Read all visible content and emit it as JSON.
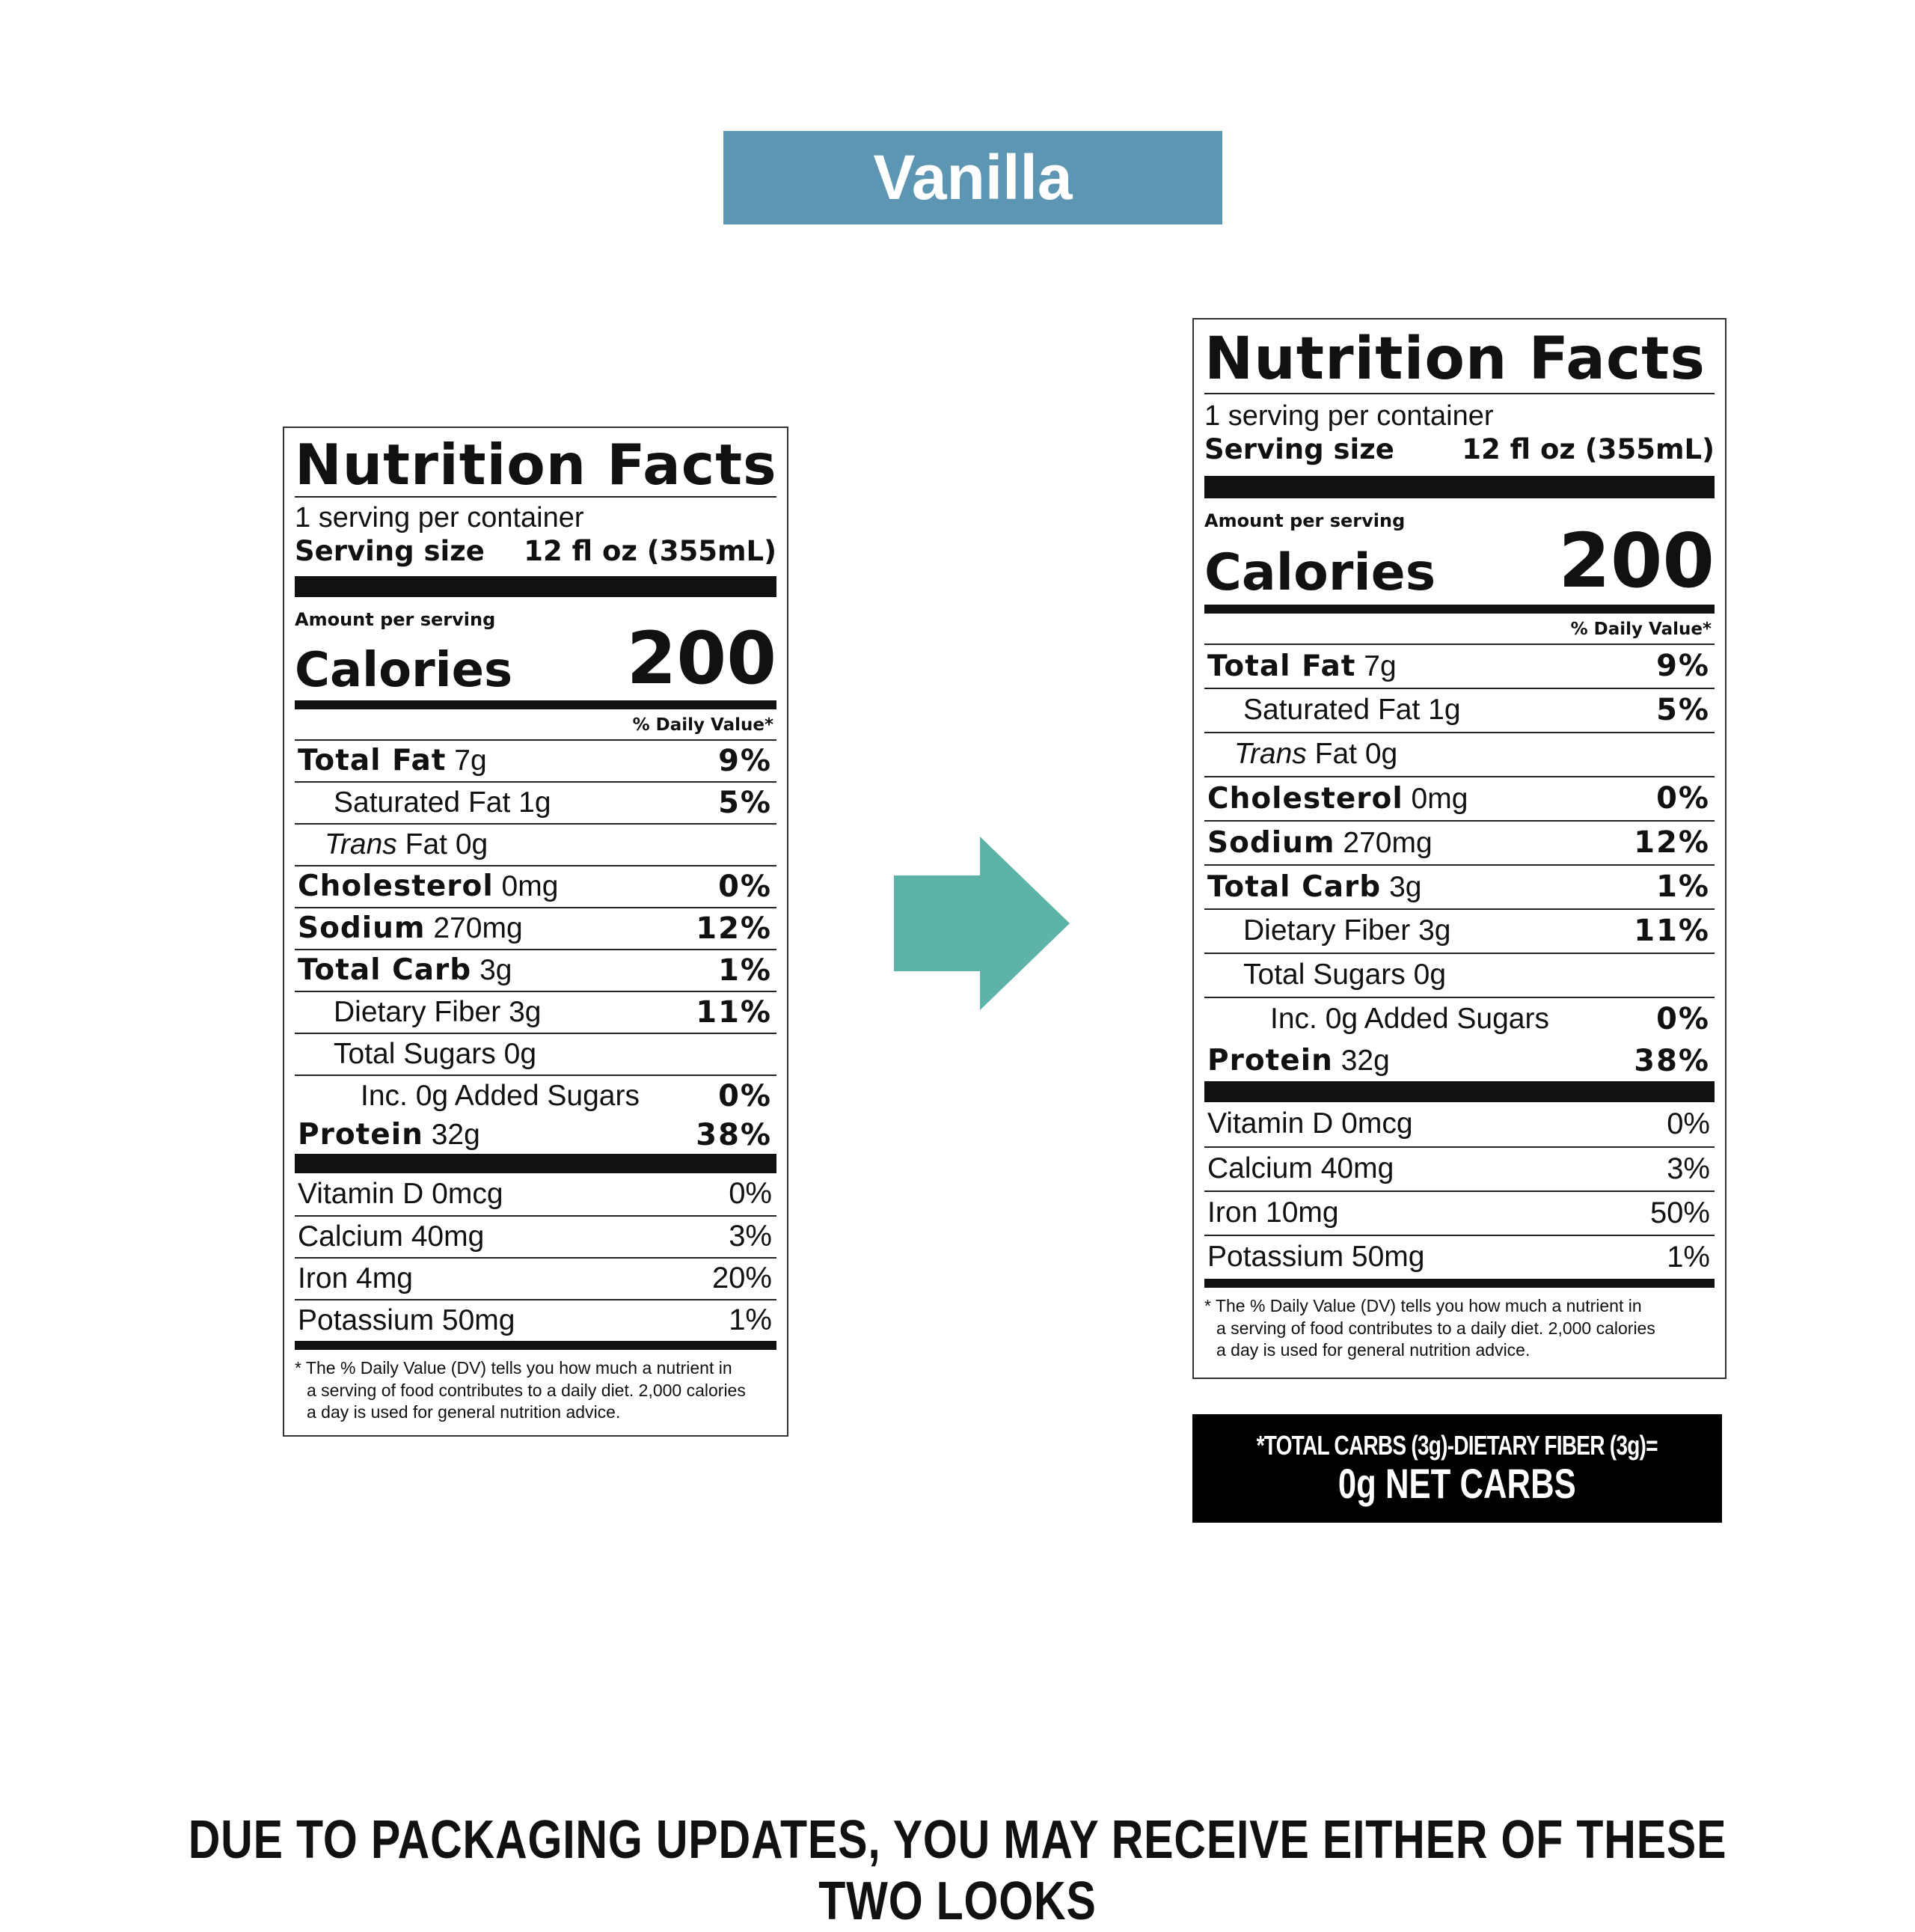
{
  "flavor": "Vanilla",
  "colors": {
    "banner": "#5d96b3",
    "arrow": "#5db3a7"
  },
  "icons": {
    "arrow": "right-arrow-icon"
  },
  "labels": [
    {
      "title": "Nutrition Facts",
      "servings_per_container": "1 serving per container",
      "serving_size_label": "Serving size",
      "serving_size_value": "12 fl oz (355mL)",
      "amount_per_serving": "Amount per serving",
      "calories_label": "Calories",
      "calories_value": "200",
      "dv_header": "% Daily Value*",
      "nutrients": [
        {
          "name": "Total Fat",
          "amount": "7g",
          "dv": "9%"
        },
        {
          "name": "Saturated Fat",
          "amount": "1g",
          "dv": "5%"
        },
        {
          "name": "Trans",
          "amount": "Fat 0g",
          "dv": ""
        },
        {
          "name": "Cholesterol",
          "amount": "0mg",
          "dv": "0%"
        },
        {
          "name": "Sodium",
          "amount": "270mg",
          "dv": "12%"
        },
        {
          "name": "Total Carb",
          "amount": "3g",
          "dv": "1%"
        },
        {
          "name": "Dietary Fiber",
          "amount": "3g",
          "dv": "11%"
        },
        {
          "name": "Total Sugars",
          "amount": "0g",
          "dv": ""
        },
        {
          "name": "Inc. 0g Added Sugars",
          "amount": "",
          "dv": "0%"
        },
        {
          "name": "Protein",
          "amount": "32g",
          "dv": "38%"
        }
      ],
      "vitamins": [
        {
          "name": "Vitamin D 0mcg",
          "dv": "0%"
        },
        {
          "name": "Calcium 40mg",
          "dv": "3%"
        },
        {
          "name": "Iron 4mg",
          "dv": "20%"
        },
        {
          "name": "Potassium 50mg",
          "dv": "1%"
        }
      ],
      "footnote_1": "* The % Daily Value (DV) tells you how much a nutrient in",
      "footnote_2": "a serving of food contributes to a daily diet. 2,000 calories",
      "footnote_3": "a day is used for general nutrition advice."
    },
    {
      "title": "Nutrition Facts",
      "servings_per_container": "1 serving per container",
      "serving_size_label": "Serving size",
      "serving_size_value": "12 fl oz (355mL)",
      "amount_per_serving": "Amount per serving",
      "calories_label": "Calories",
      "calories_value": "200",
      "dv_header": "% Daily Value*",
      "nutrients": [
        {
          "name": "Total Fat",
          "amount": "7g",
          "dv": "9%"
        },
        {
          "name": "Saturated Fat",
          "amount": "1g",
          "dv": "5%"
        },
        {
          "name": "Trans",
          "amount": "Fat 0g",
          "dv": ""
        },
        {
          "name": "Cholesterol",
          "amount": "0mg",
          "dv": "0%"
        },
        {
          "name": "Sodium",
          "amount": "270mg",
          "dv": "12%"
        },
        {
          "name": "Total Carb",
          "amount": "3g",
          "dv": "1%"
        },
        {
          "name": "Dietary Fiber",
          "amount": "3g",
          "dv": "11%"
        },
        {
          "name": "Total Sugars",
          "amount": "0g",
          "dv": ""
        },
        {
          "name": "Inc. 0g Added Sugars",
          "amount": "",
          "dv": "0%"
        },
        {
          "name": "Protein",
          "amount": "32g",
          "dv": "38%"
        }
      ],
      "vitamins": [
        {
          "name": "Vitamin D 0mcg",
          "dv": "0%"
        },
        {
          "name": "Calcium 40mg",
          "dv": "3%"
        },
        {
          "name": "Iron 10mg",
          "dv": "50%"
        },
        {
          "name": "Potassium 50mg",
          "dv": "1%"
        }
      ],
      "footnote_1": "* The % Daily Value (DV) tells you how much a nutrient in",
      "footnote_2": "a serving of food contributes to a daily diet. 2,000 calories",
      "footnote_3": "a day is used for general nutrition advice."
    }
  ],
  "net_carbs": {
    "line1": "*TOTAL CARBS (3g)-DIETARY FIBER (3g)=",
    "line2": "0g NET CARBS"
  },
  "bottom_notice": "DUE TO PACKAGING UPDATES, YOU MAY RECEIVE EITHER OF THESE TWO LOOKS"
}
